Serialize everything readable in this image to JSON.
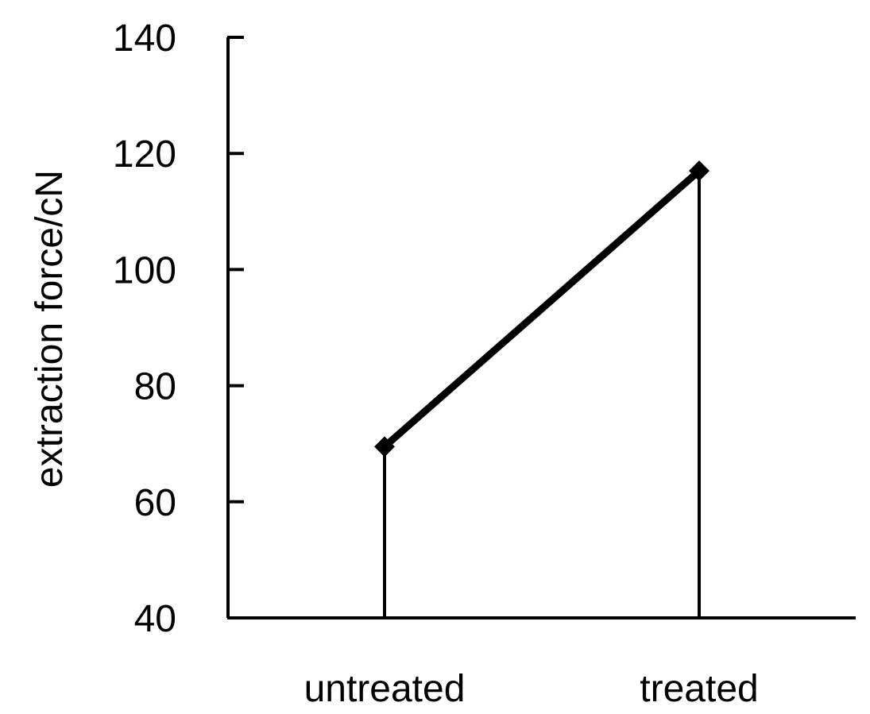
{
  "chart_data": {
    "type": "line",
    "title": "",
    "xlabel": "",
    "ylabel": "extraction force/cN",
    "categories": [
      "untreated",
      "treated"
    ],
    "series": [
      {
        "values": [
          69.5,
          117
        ]
      }
    ],
    "ylim": [
      40,
      140
    ],
    "yticks": [
      "40",
      "60",
      "80",
      "100",
      "120",
      "140"
    ],
    "drop_lines": true,
    "marker": "diamond",
    "grid": false,
    "legend": "none",
    "colors": {
      "line": "#000000",
      "axis": "#000000",
      "background": "#ffffff"
    }
  }
}
